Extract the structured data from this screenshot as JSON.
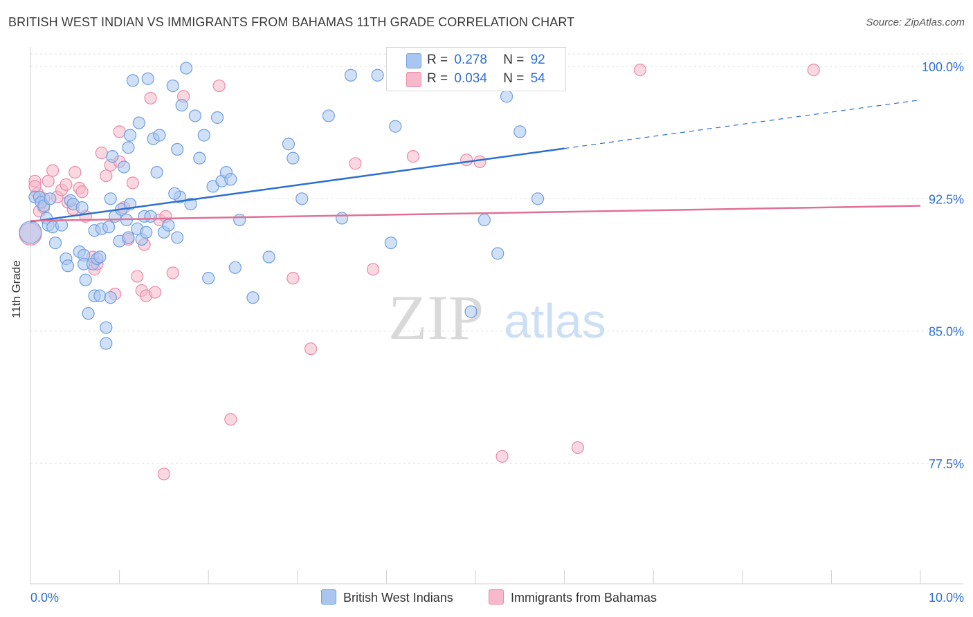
{
  "title": "BRITISH WEST INDIAN VS IMMIGRANTS FROM BAHAMAS 11TH GRADE CORRELATION CHART",
  "source": "Source: ZipAtlas.com",
  "watermark": {
    "zip": "ZIP",
    "atlas": "atlas"
  },
  "legend": {
    "r_label": "R =",
    "n_label": "N =",
    "rows": [
      {
        "r": "0.278",
        "n": "92",
        "color": "#a9c6f0",
        "border": "#6f9fe0"
      },
      {
        "r": "0.034",
        "n": "54",
        "color": "#f6b8cb",
        "border": "#ea8aa8"
      }
    ]
  },
  "bottom_legend": [
    {
      "label": "British West Indians",
      "color": "#a9c6f0",
      "border": "#6f9fe0"
    },
    {
      "label": "Immigrants from Bahamas",
      "color": "#f6b8cb",
      "border": "#ea8aa8"
    }
  ],
  "chart_data": {
    "type": "scatter",
    "title": "BRITISH WEST INDIAN VS IMMIGRANTS FROM BAHAMAS 11TH GRADE CORRELATION CHART",
    "xlabel": "",
    "ylabel": "11th Grade",
    "xlim": [
      0,
      10
    ],
    "ylim": [
      71.0,
      101.0
    ],
    "x_tick_labels": [
      "0.0%",
      "10.0%"
    ],
    "y_ticks": [
      100.0,
      92.5,
      85.0,
      77.5
    ],
    "y_tick_labels": [
      "100.0%",
      "92.5%",
      "85.0%",
      "77.5%"
    ],
    "grid": true,
    "legend_position": "top-center",
    "series": [
      {
        "name": "British West Indians",
        "color": "#6f9fe0",
        "fill": "#a9c6f0",
        "trend": {
          "x0": 0.0,
          "y0": 91.2,
          "x1": 6.0,
          "y1": 95.35,
          "x_dash_end": 10.0,
          "y_dash_end": 98.1,
          "color": "#2d6fd1"
        },
        "points": [
          [
            0.05,
            92.6
          ],
          [
            0.1,
            92.6
          ],
          [
            0.12,
            92.3
          ],
          [
            0.15,
            92.1
          ],
          [
            0.18,
            91.4
          ],
          [
            0.2,
            91.0
          ],
          [
            0.22,
            92.5
          ],
          [
            0.25,
            90.9
          ],
          [
            0.28,
            90.0
          ],
          [
            0.35,
            91.0
          ],
          [
            0.4,
            89.1
          ],
          [
            0.42,
            88.7
          ],
          [
            0.45,
            92.4
          ],
          [
            0.48,
            92.2
          ],
          [
            0.55,
            89.5
          ],
          [
            0.58,
            92.0
          ],
          [
            0.6,
            89.3
          ],
          [
            0.62,
            87.9
          ],
          [
            0.6,
            88.8
          ],
          [
            0.65,
            86.0
          ],
          [
            0.7,
            88.8
          ],
          [
            0.72,
            90.7
          ],
          [
            0.75,
            89.1
          ],
          [
            0.72,
            87.0
          ],
          [
            0.78,
            87.0
          ],
          [
            0.78,
            89.2
          ],
          [
            0.8,
            90.8
          ],
          [
            0.85,
            85.2
          ],
          [
            0.9,
            86.9
          ],
          [
            0.85,
            84.3
          ],
          [
            0.88,
            90.9
          ],
          [
            0.9,
            92.5
          ],
          [
            0.92,
            94.9
          ],
          [
            0.95,
            91.5
          ],
          [
            1.0,
            90.1
          ],
          [
            1.02,
            91.9
          ],
          [
            1.05,
            94.3
          ],
          [
            1.08,
            91.3
          ],
          [
            1.1,
            90.3
          ],
          [
            1.12,
            92.2
          ],
          [
            1.1,
            95.4
          ],
          [
            1.12,
            96.1
          ],
          [
            1.15,
            99.2
          ],
          [
            1.2,
            90.8
          ],
          [
            1.22,
            96.8
          ],
          [
            1.25,
            90.2
          ],
          [
            1.28,
            91.5
          ],
          [
            1.3,
            90.6
          ],
          [
            1.32,
            99.3
          ],
          [
            1.35,
            91.5
          ],
          [
            1.38,
            95.9
          ],
          [
            1.42,
            94.0
          ],
          [
            1.45,
            96.1
          ],
          [
            1.5,
            90.6
          ],
          [
            1.55,
            91.0
          ],
          [
            1.6,
            98.9
          ],
          [
            1.65,
            95.3
          ],
          [
            1.68,
            92.6
          ],
          [
            1.62,
            92.8
          ],
          [
            1.65,
            90.3
          ],
          [
            1.7,
            97.8
          ],
          [
            1.75,
            99.9
          ],
          [
            1.8,
            92.2
          ],
          [
            1.85,
            97.2
          ],
          [
            1.9,
            94.8
          ],
          [
            1.95,
            96.1
          ],
          [
            2.0,
            88.0
          ],
          [
            2.05,
            93.2
          ],
          [
            2.1,
            97.1
          ],
          [
            2.15,
            93.5
          ],
          [
            2.2,
            94.0
          ],
          [
            2.25,
            93.6
          ],
          [
            2.3,
            88.6
          ],
          [
            2.35,
            91.3
          ],
          [
            2.5,
            86.9
          ],
          [
            2.68,
            89.2
          ],
          [
            2.9,
            95.6
          ],
          [
            2.95,
            94.8
          ],
          [
            3.05,
            92.5
          ],
          [
            3.35,
            97.2
          ],
          [
            3.5,
            91.4
          ],
          [
            3.6,
            99.5
          ],
          [
            3.9,
            99.5
          ],
          [
            4.05,
            90.0
          ],
          [
            4.1,
            96.6
          ],
          [
            4.95,
            86.1
          ],
          [
            5.1,
            91.3
          ],
          [
            5.25,
            89.4
          ],
          [
            5.35,
            98.3
          ],
          [
            5.5,
            96.3
          ],
          [
            5.7,
            92.5
          ],
          [
            0.0,
            90.6
          ]
        ],
        "sizes_note_large": [
          [
            0.0,
            90.6
          ],
          [
            0.6,
            87.9
          ]
        ]
      },
      {
        "name": "Immigrants from Bahamas",
        "color": "#ea8aa8",
        "fill": "#f6b8cb",
        "trend": {
          "x0": 0.0,
          "y0": 91.25,
          "x1": 10.0,
          "y1": 92.1,
          "color": "#e07095"
        },
        "points": [
          [
            0.05,
            93.5
          ],
          [
            0.08,
            92.8
          ],
          [
            0.1,
            91.8
          ],
          [
            0.15,
            92.5
          ],
          [
            0.2,
            93.5
          ],
          [
            0.25,
            94.1
          ],
          [
            0.3,
            92.6
          ],
          [
            0.35,
            93.0
          ],
          [
            0.4,
            93.3
          ],
          [
            0.42,
            92.3
          ],
          [
            0.48,
            91.9
          ],
          [
            0.5,
            94.0
          ],
          [
            0.55,
            93.1
          ],
          [
            0.58,
            92.9
          ],
          [
            0.62,
            91.5
          ],
          [
            0.7,
            89.2
          ],
          [
            0.72,
            88.5
          ],
          [
            0.75,
            88.8
          ],
          [
            0.8,
            95.1
          ],
          [
            0.85,
            93.8
          ],
          [
            0.9,
            94.4
          ],
          [
            0.95,
            87.1
          ],
          [
            1.0,
            94.6
          ],
          [
            1.05,
            92.0
          ],
          [
            1.1,
            90.2
          ],
          [
            1.15,
            93.4
          ],
          [
            1.2,
            88.1
          ],
          [
            1.25,
            87.3
          ],
          [
            1.28,
            89.9
          ],
          [
            1.3,
            87.0
          ],
          [
            1.35,
            98.2
          ],
          [
            1.4,
            87.2
          ],
          [
            1.45,
            91.3
          ],
          [
            1.52,
            91.5
          ],
          [
            1.6,
            88.3
          ],
          [
            1.72,
            98.3
          ],
          [
            1.5,
            76.9
          ],
          [
            2.12,
            98.9
          ],
          [
            2.25,
            80.0
          ],
          [
            2.95,
            88.0
          ],
          [
            3.15,
            84.0
          ],
          [
            3.65,
            94.5
          ],
          [
            3.85,
            88.5
          ],
          [
            4.3,
            94.9
          ],
          [
            4.9,
            94.7
          ],
          [
            5.05,
            94.6
          ],
          [
            5.3,
            77.9
          ],
          [
            6.15,
            78.4
          ],
          [
            6.85,
            99.8
          ],
          [
            8.8,
            99.8
          ],
          [
            1.0,
            96.3
          ],
          [
            0.0,
            90.5
          ],
          [
            0.05,
            93.2
          ],
          [
            0.15,
            92.0
          ]
        ],
        "sizes_note_large": [
          [
            0.0,
            90.5
          ]
        ]
      }
    ]
  }
}
